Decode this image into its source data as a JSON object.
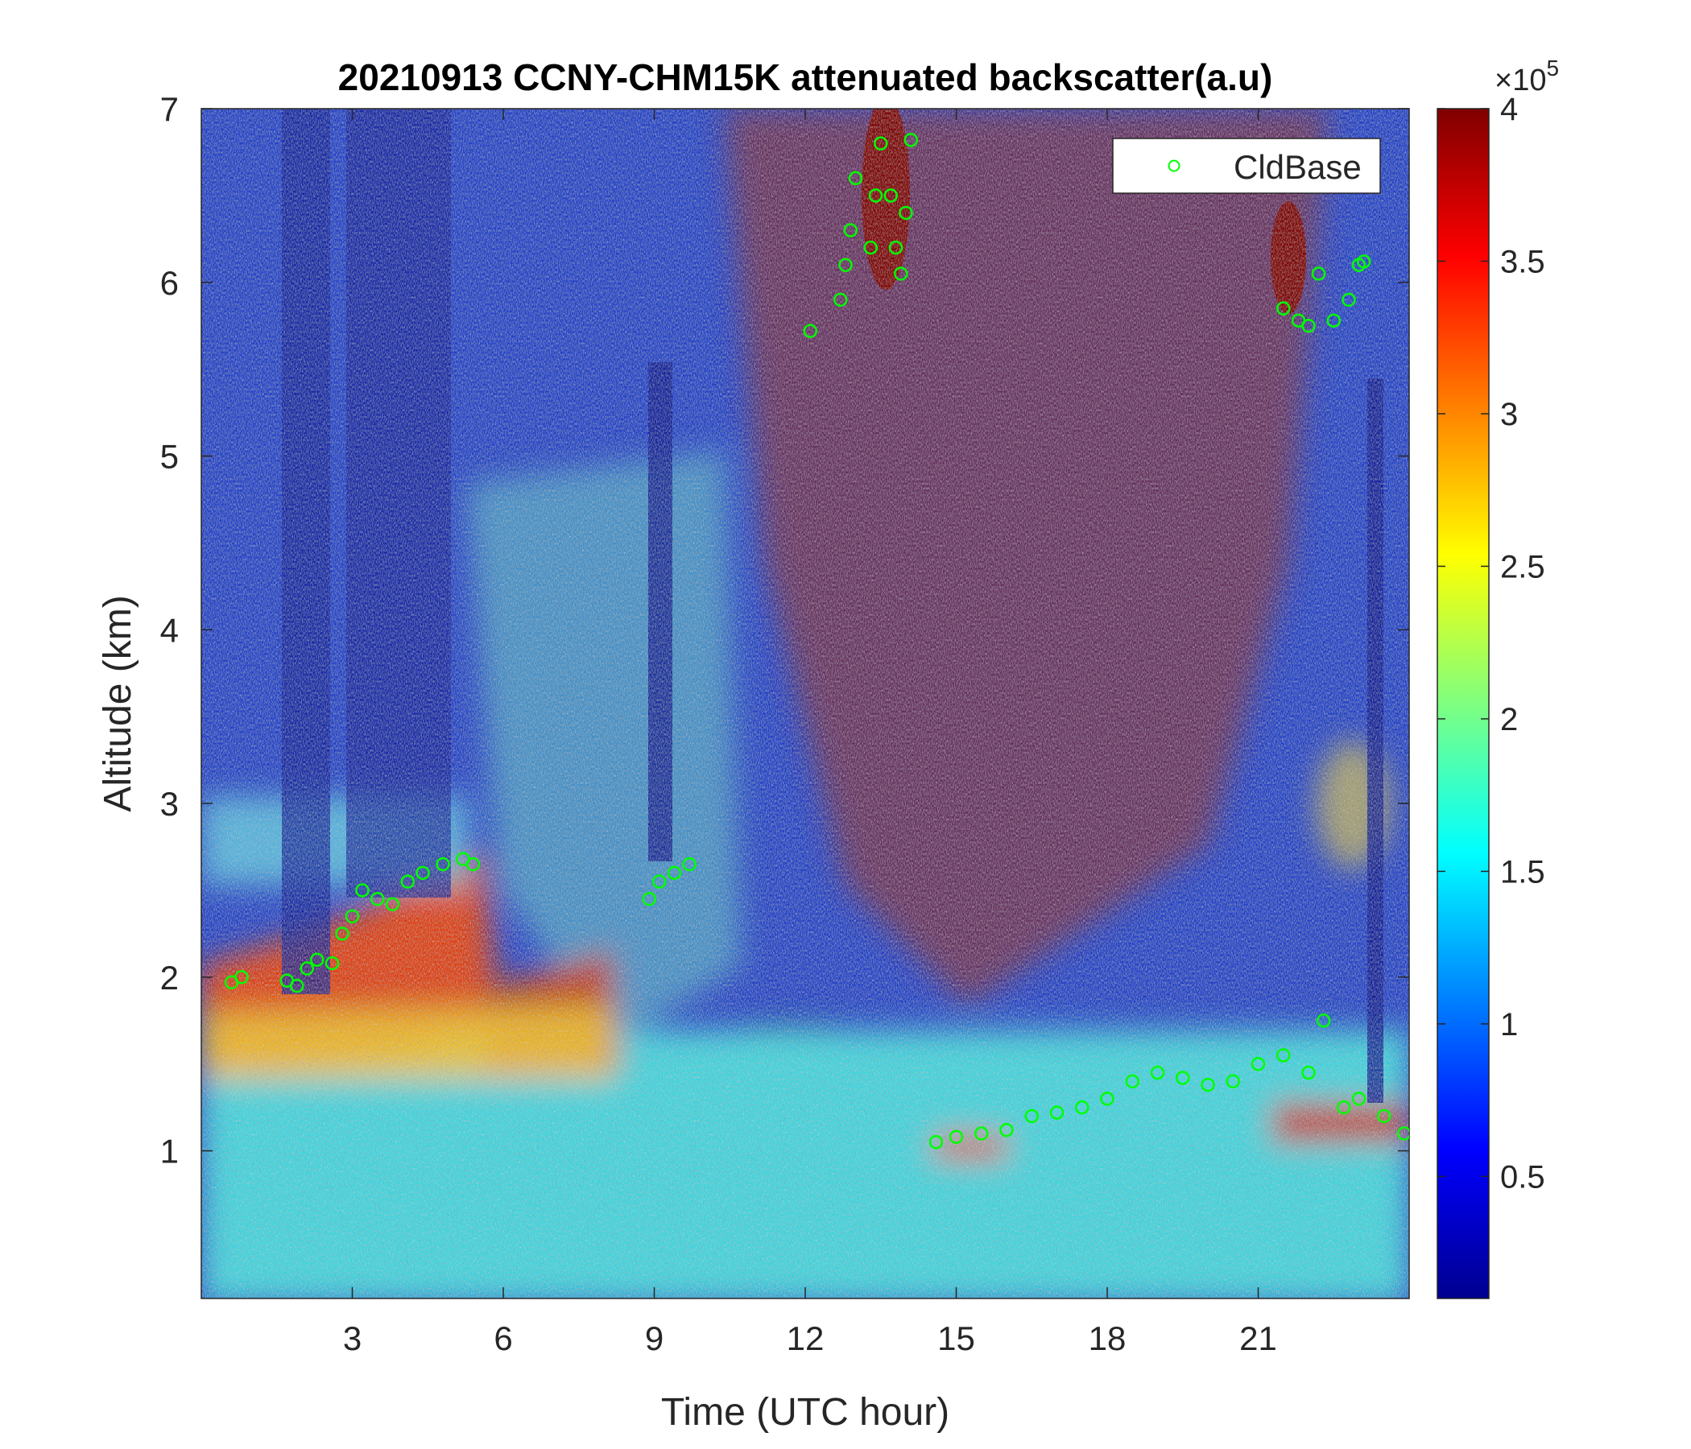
{
  "chart_data": {
    "type": "heatmap",
    "title": "20210913 CCNY-CHM15K attenuated backscatter(a.u)",
    "xlabel": "Time (UTC hour)",
    "ylabel": "Altitude (km)",
    "xlim": [
      0,
      24
    ],
    "ylim": [
      0.15,
      7
    ],
    "xticks": [
      3,
      6,
      9,
      12,
      15,
      18,
      21
    ],
    "yticks": [
      1,
      2,
      3,
      4,
      5,
      6,
      7
    ],
    "colorbar": {
      "colormap": "jet",
      "range": [
        0.1,
        4
      ],
      "ticks": [
        0.5,
        1,
        1.5,
        2,
        2.5,
        3,
        3.5,
        4
      ],
      "exponent_base": "10",
      "exponent_power": "5",
      "multiplier_symbol": "×"
    },
    "legend": {
      "location": "top-right",
      "entries": [
        "CldBase"
      ]
    },
    "series": [
      {
        "name": "CldBase",
        "marker": "circle-open",
        "color": "#00ff00",
        "points": [
          [
            0.6,
            1.97
          ],
          [
            0.8,
            2.0
          ],
          [
            1.7,
            1.98
          ],
          [
            1.9,
            1.95
          ],
          [
            2.1,
            2.05
          ],
          [
            2.3,
            2.1
          ],
          [
            2.6,
            2.08
          ],
          [
            2.8,
            2.25
          ],
          [
            3.0,
            2.35
          ],
          [
            3.2,
            2.5
          ],
          [
            3.5,
            2.45
          ],
          [
            3.8,
            2.42
          ],
          [
            4.1,
            2.55
          ],
          [
            4.4,
            2.6
          ],
          [
            4.8,
            2.65
          ],
          [
            5.2,
            2.68
          ],
          [
            5.4,
            2.65
          ],
          [
            8.9,
            2.45
          ],
          [
            9.1,
            2.55
          ],
          [
            9.4,
            2.6
          ],
          [
            9.7,
            2.65
          ],
          [
            12.1,
            5.72
          ],
          [
            12.7,
            5.9
          ],
          [
            12.8,
            6.1
          ],
          [
            12.9,
            6.3
          ],
          [
            13.0,
            6.6
          ],
          [
            13.3,
            6.2
          ],
          [
            13.4,
            6.5
          ],
          [
            13.5,
            6.8
          ],
          [
            13.7,
            6.5
          ],
          [
            13.8,
            6.2
          ],
          [
            13.9,
            6.05
          ],
          [
            14.0,
            6.4
          ],
          [
            14.1,
            6.82
          ],
          [
            14.6,
            1.05
          ],
          [
            15.0,
            1.08
          ],
          [
            15.5,
            1.1
          ],
          [
            16.0,
            1.12
          ],
          [
            16.5,
            1.2
          ],
          [
            17.0,
            1.22
          ],
          [
            17.5,
            1.25
          ],
          [
            18.0,
            1.3
          ],
          [
            18.5,
            1.4
          ],
          [
            19.0,
            1.45
          ],
          [
            19.5,
            1.42
          ],
          [
            20.0,
            1.38
          ],
          [
            20.5,
            1.4
          ],
          [
            21.0,
            1.5
          ],
          [
            21.5,
            1.55
          ],
          [
            22.0,
            1.45
          ],
          [
            22.3,
            1.75
          ],
          [
            22.7,
            1.25
          ],
          [
            23.0,
            1.3
          ],
          [
            23.5,
            1.2
          ],
          [
            23.9,
            1.1
          ],
          [
            21.5,
            5.85
          ],
          [
            21.8,
            5.78
          ],
          [
            22.0,
            5.75
          ],
          [
            22.2,
            6.05
          ],
          [
            22.5,
            5.78
          ],
          [
            22.8,
            5.9
          ],
          [
            23.0,
            6.1
          ],
          [
            23.1,
            6.12
          ]
        ]
      }
    ]
  }
}
